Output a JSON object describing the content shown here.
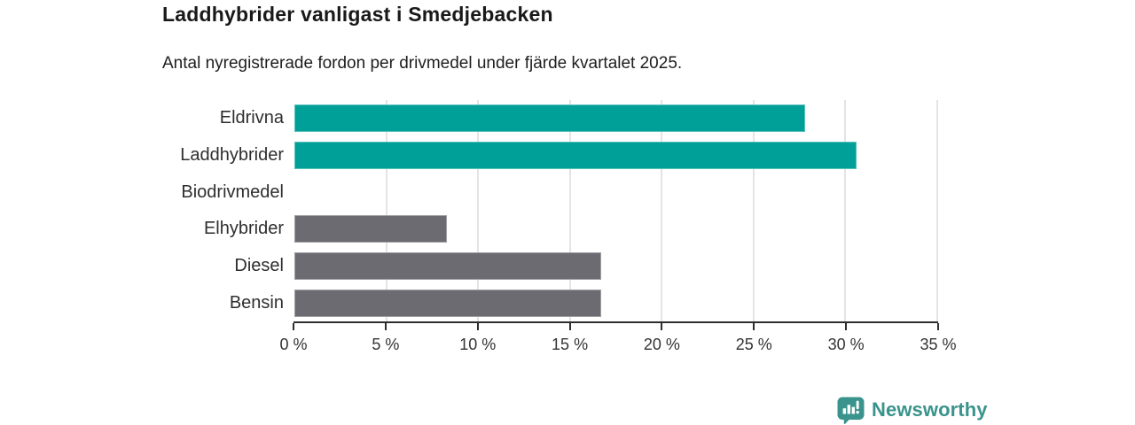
{
  "title": "Laddhybrider vanligast i Smedjebacken",
  "subtitle": "Antal nyregistrerade fordon per drivmedel under fjärde kvartalet 2025.",
  "chart_data": {
    "type": "bar",
    "orientation": "horizontal",
    "categories": [
      "Eldrivna",
      "Laddhybrider",
      "Biodrivmedel",
      "Elhybrider",
      "Diesel",
      "Bensin"
    ],
    "values": [
      27.8,
      30.6,
      0,
      8.3,
      16.7,
      16.7
    ],
    "unit": "%",
    "bar_colors": [
      "#00a098",
      "#00a098",
      "#6c6b71",
      "#6c6b71",
      "#6c6b71",
      "#6c6b71"
    ],
    "highlight_color": "#00a098",
    "default_color": "#6c6b71",
    "xlim": [
      0,
      35
    ],
    "x_tick_step": 5,
    "x_tick_labels": [
      "0 %",
      "5 %",
      "10 %",
      "15 %",
      "20 %",
      "25 %",
      "30 %",
      "35 %"
    ],
    "grid": true,
    "gridline_color": "#e4e4e4",
    "axis_color": "#2e2e2e",
    "title": "Laddhybrider vanligast i Smedjebacken",
    "xlabel": "",
    "ylabel": ""
  },
  "branding": {
    "logo_text": "Newsworthy",
    "logo_color": "#3a938c",
    "logo_icon": "bar-chart-bubble-icon"
  }
}
